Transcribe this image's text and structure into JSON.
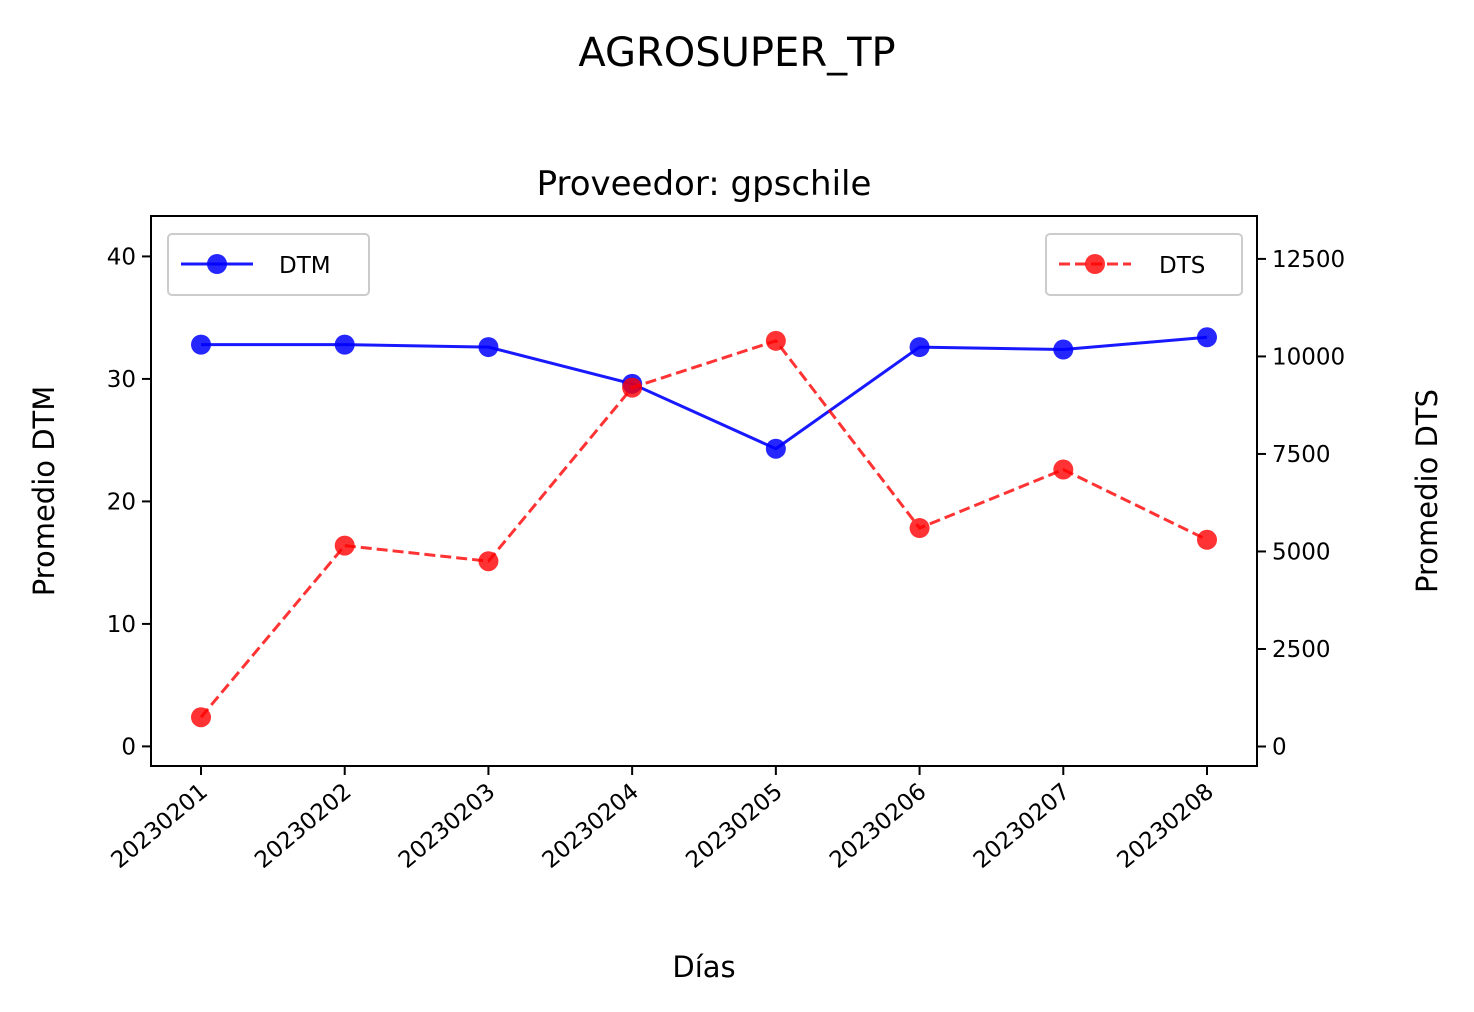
{
  "chart_data": {
    "type": "line",
    "suptitle": "AGROSUPER_TP",
    "title": "Proveedor: gpschile",
    "xlabel": "Días",
    "ylabel_left": "Promedio DTM",
    "ylabel_right": "Promedio DTS",
    "categories": [
      "20230201",
      "20230202",
      "20230203",
      "20230204",
      "20230205",
      "20230206",
      "20230207",
      "20230208"
    ],
    "series": [
      {
        "name": "DTM",
        "axis": "left",
        "color": "#0000ff",
        "linestyle": "solid",
        "marker": "circle",
        "values": [
          32.8,
          32.8,
          32.6,
          29.6,
          24.3,
          32.6,
          32.4,
          33.4
        ]
      },
      {
        "name": "DTS",
        "axis": "right",
        "color": "#ff0000",
        "linestyle": "dashed",
        "marker": "circle",
        "values": [
          750,
          5150,
          4750,
          9200,
          10400,
          5600,
          7100,
          5300
        ]
      }
    ],
    "ylim_left": [
      -1.6,
      43.3
    ],
    "yticks_left": [
      0,
      10,
      20,
      30,
      40
    ],
    "ylim_right": [
      -500,
      13600
    ],
    "yticks_right": [
      0,
      2500,
      5000,
      7500,
      10000,
      12500
    ],
    "grid": false,
    "legend_left_position": "upper left",
    "legend_right_position": "upper right"
  }
}
